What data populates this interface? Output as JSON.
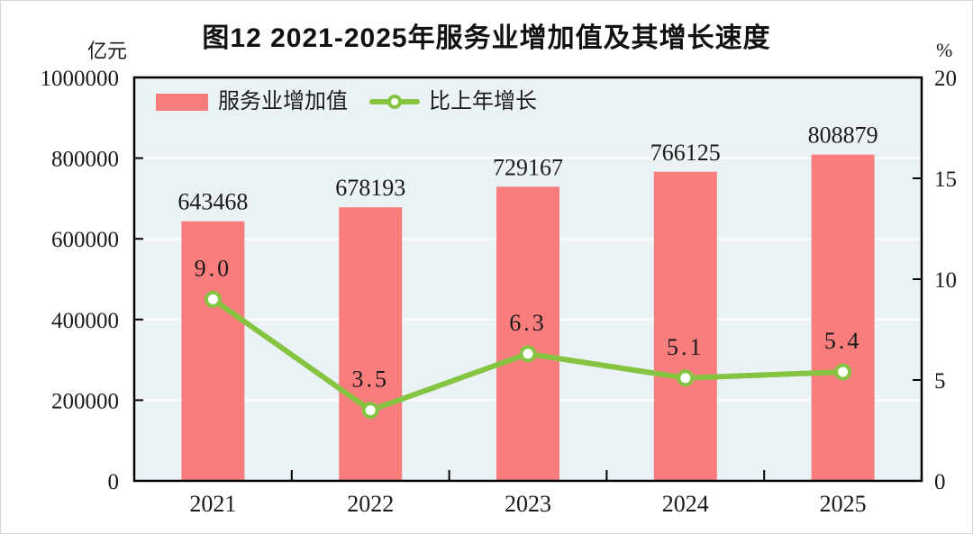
{
  "chart_data": {
    "type": "bar+line",
    "title": "图12  2021-2025年服务业增加值及其增长速度",
    "categories": [
      "2021",
      "2022",
      "2023",
      "2024",
      "2025"
    ],
    "series": [
      {
        "name": "服务业增加值",
        "type": "bar",
        "axis": "left",
        "values": [
          643468,
          678193,
          729167,
          766125,
          808879
        ],
        "labels": [
          "643468",
          "678193",
          "729167",
          "766125",
          "808879"
        ],
        "color": "#F97D7D"
      },
      {
        "name": "比上年增长",
        "type": "line",
        "axis": "right",
        "values": [
          9.0,
          3.5,
          6.3,
          5.1,
          5.4
        ],
        "labels": [
          "9.0",
          "3.5",
          "6.3",
          "5.1",
          "5.4"
        ],
        "color": "#85C441"
      }
    ],
    "left_axis": {
      "unit": "亿元",
      "min": 0,
      "max": 1000000,
      "ticks": [
        0,
        200000,
        400000,
        600000,
        800000,
        1000000
      ],
      "tick_labels": [
        "0",
        "200000",
        "400000",
        "600000",
        "800000",
        "1000000"
      ]
    },
    "right_axis": {
      "unit": "%",
      "min": 0,
      "max": 20,
      "ticks": [
        0,
        5,
        10,
        15,
        20
      ],
      "tick_labels": [
        "0",
        "5",
        "10",
        "15",
        "20"
      ]
    },
    "grid": true,
    "legend_position": "top-left-inside",
    "colors": {
      "bar": "#F97D7D",
      "line": "#85C441",
      "marker_fill": "#FFFFFF",
      "plot_bg": "#EBF2F6",
      "grid": "#FFFFFF",
      "axis": "#000000",
      "text": "#1A1A1A"
    }
  }
}
